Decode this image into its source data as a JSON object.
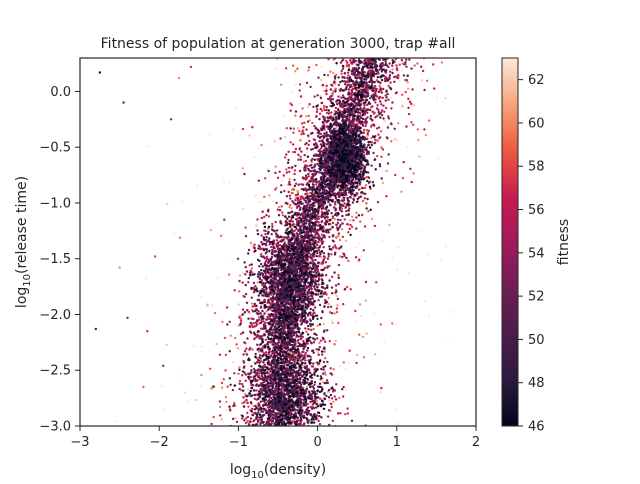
{
  "chart_data": {
    "type": "scatter",
    "title": "Fitness of population at generation 3000, trap #all",
    "xlabel": "log10(density)",
    "ylabel": "log10(release time)",
    "xlim": [
      -3,
      2
    ],
    "ylim": [
      -3.0,
      0.3
    ],
    "x_ticks": [
      -3,
      -2,
      -1,
      0,
      1,
      2
    ],
    "y_ticks": [
      0.0,
      -0.5,
      -1.0,
      -1.5,
      -2.0,
      -2.5,
      -3.0
    ],
    "x_tick_labels": [
      "−3",
      "−2",
      "−1",
      "0",
      "1",
      "2"
    ],
    "y_tick_labels": [
      "0.0",
      "−0.5",
      "−1.0",
      "−1.5",
      "−2.0",
      "−2.5",
      "−3.0"
    ],
    "grid": false,
    "colorbar": {
      "label": "fitness",
      "range": [
        46,
        63
      ],
      "ticks": [
        46,
        48,
        50,
        52,
        54,
        56,
        58,
        60,
        62
      ],
      "colormap": "rocket"
    },
    "clusters": [
      {
        "x": 0.35,
        "y": -0.6,
        "sx": 0.13,
        "sy": 0.17,
        "n": 1400,
        "fitness_mean": 50,
        "fitness_sd": 3
      },
      {
        "x": -0.35,
        "y": -1.7,
        "sx": 0.22,
        "sy": 0.25,
        "n": 1400,
        "fitness_mean": 51,
        "fitness_sd": 3
      },
      {
        "x": -0.4,
        "y": -2.7,
        "sx": 0.25,
        "sy": 0.2,
        "n": 1100,
        "fitness_mean": 51,
        "fitness_sd": 3
      }
    ],
    "ridge": [
      {
        "y": 0.3,
        "x": 0.7
      },
      {
        "y": -0.3,
        "x": 0.35
      },
      {
        "y": -0.8,
        "x": 0.1
      },
      {
        "y": -1.2,
        "x": -0.1
      },
      {
        "y": -1.7,
        "x": -0.35
      },
      {
        "y": -2.2,
        "x": -0.45
      },
      {
        "y": -3.0,
        "x": -0.45
      }
    ],
    "ridge_spread": 0.5,
    "ridge_points": 6000,
    "outliers": [
      {
        "x": -2.75,
        "y": 0.17,
        "fitness": 47
      },
      {
        "x": -2.45,
        "y": -0.1,
        "fitness": 52
      },
      {
        "x": -2.8,
        "y": -2.13,
        "fitness": 50
      },
      {
        "x": -2.4,
        "y": -2.03,
        "fitness": 54
      },
      {
        "x": -2.5,
        "y": -1.58,
        "fitness": 60
      },
      {
        "x": -2.15,
        "y": -2.15,
        "fitness": 57
      },
      {
        "x": -2.05,
        "y": -1.48,
        "fitness": 58
      },
      {
        "x": -1.9,
        "y": -1.01,
        "fitness": 62
      },
      {
        "x": -1.85,
        "y": -0.25,
        "fitness": 55
      },
      {
        "x": -1.75,
        "y": 0.12,
        "fitness": 60
      },
      {
        "x": -2.2,
        "y": -2.65,
        "fitness": 59
      },
      {
        "x": -1.95,
        "y": -2.46,
        "fitness": 54
      },
      {
        "x": -1.6,
        "y": 0.22,
        "fitness": 57
      }
    ]
  }
}
